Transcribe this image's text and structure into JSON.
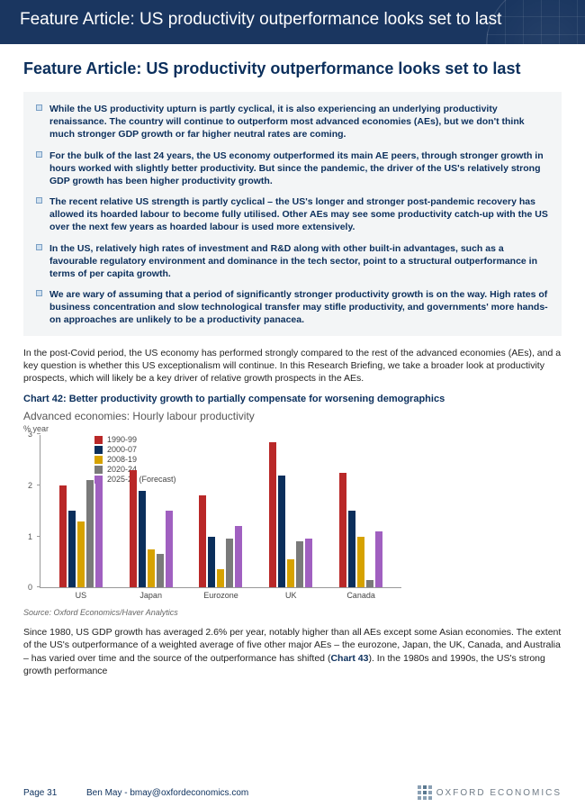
{
  "header": {
    "title": "Feature Article: US productivity outperformance looks set to last"
  },
  "feature": {
    "title": "Feature Article: US productivity outperformance looks set to last"
  },
  "bullets": [
    "While the US productivity upturn is partly cyclical, it is also experiencing an underlying productivity renaissance. The country will continue to outperform most advanced economies (AEs), but we don't think much stronger GDP growth or far higher neutral rates are coming.",
    "For the bulk of the last 24 years, the US economy outperformed its main AE peers, through stronger growth in hours worked with slightly better productivity. But since the pandemic, the driver of the US's relatively strong GDP growth has been higher productivity growth.",
    "The recent relative US strength is partly cyclical – the US's longer and stronger post-pandemic recovery has allowed its hoarded labour to become fully utilised. Other AEs may see some productivity catch-up with the US over the next few years as hoarded labour is used more extensively.",
    "In the US, relatively high rates of investment and R&D along with other built-in advantages, such as a favourable regulatory environment and dominance in the tech sector, point to a structural outperformance in terms of per capita growth.",
    "We are wary of assuming that a period of significantly stronger productivity growth is on the way. High rates of business concentration and slow technological transfer may stifle productivity, and governments' more hands-on approaches are unlikely to be a productivity panacea."
  ],
  "body": {
    "para1": "In the post-Covid period, the US economy has performed strongly compared to the rest of the advanced economies (AEs), and a key question is whether this US exceptionalism will continue. In this Research Briefing, we take a broader look at productivity prospects, which will likely be a key driver of relative growth prospects in the AEs.",
    "para2_a": "Since 1980, US GDP growth has averaged 2.6% per year, notably higher than all AEs except some Asian economies. The extent of the US's outperformance of a weighted average of five other major AEs – the eurozone, Japan, the UK, Canada, and Australia – has varied over time and the source of the outperformance has shifted (",
    "para2_link": "Chart 43",
    "para2_b": "). In the 1980s and 1990s, the US's strong growth performance"
  },
  "chart": {
    "caption": "Chart 42: Better productivity growth to partially compensate for worsening demographics",
    "title": "Advanced economies: Hourly labour productivity",
    "unit": "% year",
    "ylim": [
      0,
      3
    ],
    "yticks": [
      0,
      1,
      2,
      3
    ],
    "series": [
      {
        "label": "1990-99",
        "color": "#b92828"
      },
      {
        "label": "2000-07",
        "color": "#0b2f5c"
      },
      {
        "label": "2008-19",
        "color": "#d6a200"
      },
      {
        "label": "2020-24",
        "color": "#7a7a7a"
      },
      {
        "label": "2025-29 (Forecast)",
        "color": "#a060c0"
      }
    ],
    "categories": [
      "US",
      "Japan",
      "Eurozone",
      "UK",
      "Canada"
    ],
    "values": [
      [
        2.0,
        1.5,
        1.3,
        2.1,
        2.1
      ],
      [
        2.3,
        1.9,
        0.75,
        0.65,
        1.5
      ],
      [
        1.8,
        1.0,
        0.35,
        0.95,
        1.2
      ],
      [
        2.85,
        2.2,
        0.55,
        0.9,
        0.95
      ],
      [
        2.25,
        1.5,
        1.0,
        0.15,
        1.1
      ]
    ],
    "source": "Source: Oxford Economics/Haver Analytics"
  },
  "footer": {
    "page": "Page 31",
    "contact": "Ben May - bmay@oxfordeconomics.com",
    "brand": "OXFORD ECONOMICS"
  }
}
